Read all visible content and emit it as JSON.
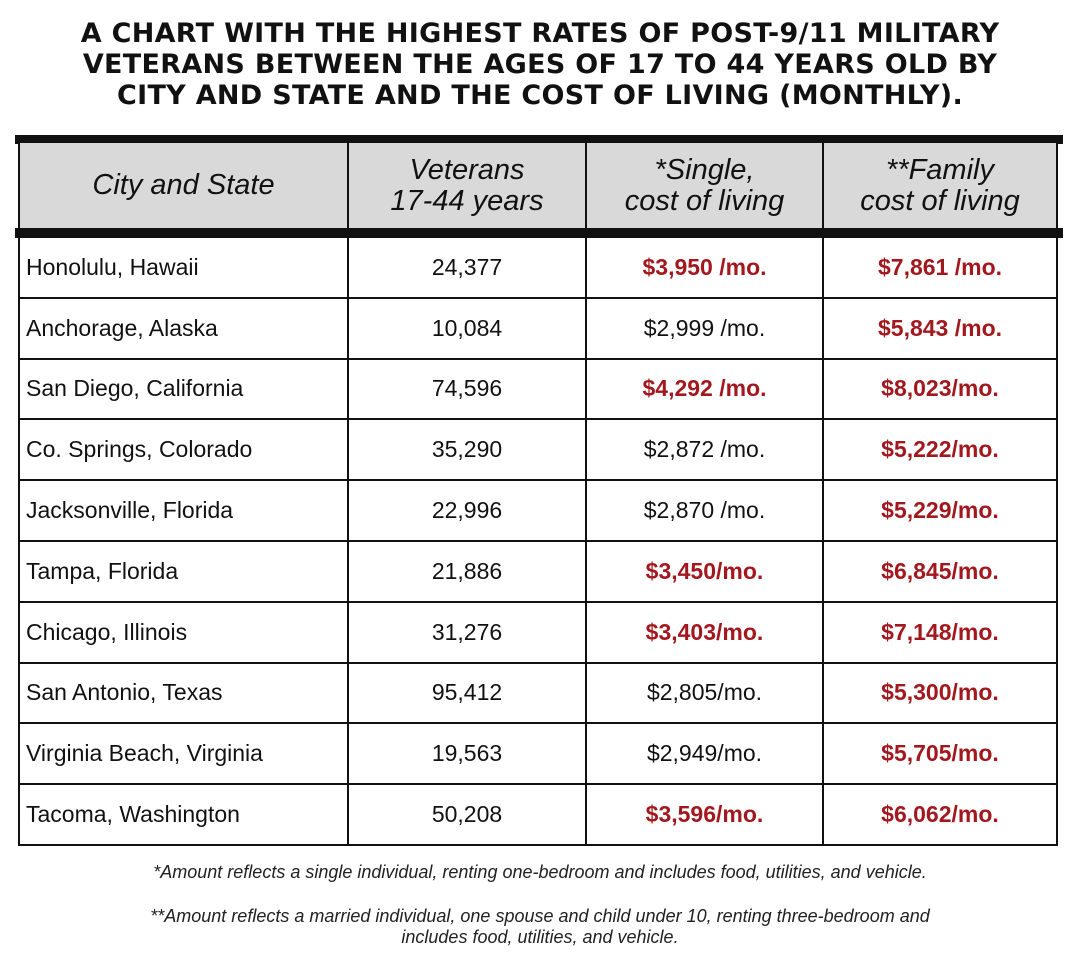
{
  "title_lines": [
    "A CHART WITH THE HIGHEST RATES OF POST-9/11 MILITARY",
    "VETERANS BETWEEN THE AGES OF 17 TO 44 YEARS OLD BY",
    "CITY AND STATE AND THE COST OF LIVING (MONTHLY)."
  ],
  "colors": {
    "highlight": "#a3181e",
    "header_bg": "#d9d9d9",
    "border": "#111111"
  },
  "chart_data": {
    "type": "table",
    "columns": [
      [
        "City and State"
      ],
      [
        "Veterans",
        "17-44 years"
      ],
      [
        "*Single,",
        "cost of living"
      ],
      [
        "**Family",
        "cost of living"
      ]
    ],
    "rows": [
      {
        "cells": [
          "Honolulu, Hawaii",
          "24,377",
          "$3,950 /mo.",
          "$7,861 /mo."
        ],
        "highlighted": [
          false,
          false,
          true,
          true
        ]
      },
      {
        "cells": [
          "Anchorage, Alaska",
          "10,084",
          "$2,999 /mo.",
          "$5,843 /mo."
        ],
        "highlighted": [
          false,
          false,
          false,
          true
        ]
      },
      {
        "cells": [
          "San Diego, California",
          "74,596",
          "$4,292 /mo.",
          "$8,023/mo."
        ],
        "highlighted": [
          false,
          false,
          true,
          true
        ]
      },
      {
        "cells": [
          "Co. Springs, Colorado",
          "35,290",
          "$2,872 /mo.",
          "$5,222/mo."
        ],
        "highlighted": [
          false,
          false,
          false,
          true
        ]
      },
      {
        "cells": [
          "Jacksonville, Florida",
          "22,996",
          "$2,870 /mo.",
          "$5,229/mo."
        ],
        "highlighted": [
          false,
          false,
          false,
          true
        ]
      },
      {
        "cells": [
          "Tampa, Florida",
          "21,886",
          "$3,450/mo.",
          "$6,845/mo."
        ],
        "highlighted": [
          false,
          false,
          true,
          true
        ]
      },
      {
        "cells": [
          "Chicago, Illinois",
          "31,276",
          "$3,403/mo.",
          "$7,148/mo."
        ],
        "highlighted": [
          false,
          false,
          true,
          true
        ]
      },
      {
        "cells": [
          "San Antonio, Texas",
          "95,412",
          "$2,805/mo.",
          "$5,300/mo."
        ],
        "highlighted": [
          false,
          false,
          false,
          true
        ]
      },
      {
        "cells": [
          "Virginia Beach, Virginia",
          "19,563",
          "$2,949/mo.",
          "$5,705/mo."
        ],
        "highlighted": [
          false,
          false,
          false,
          true
        ]
      },
      {
        "cells": [
          "Tacoma, Washington",
          "50,208",
          "$3,596/mo.",
          "$6,062/mo."
        ],
        "highlighted": [
          false,
          false,
          true,
          true
        ]
      }
    ]
  },
  "footnotes": [
    "*Amount reflects a single individual, renting one-bedroom and includes food, utilities, and vehicle.",
    "**Amount reflects a married individual, one spouse and child under 10, renting three-bedroom and",
    "includes food, utilities, and vehicle."
  ]
}
